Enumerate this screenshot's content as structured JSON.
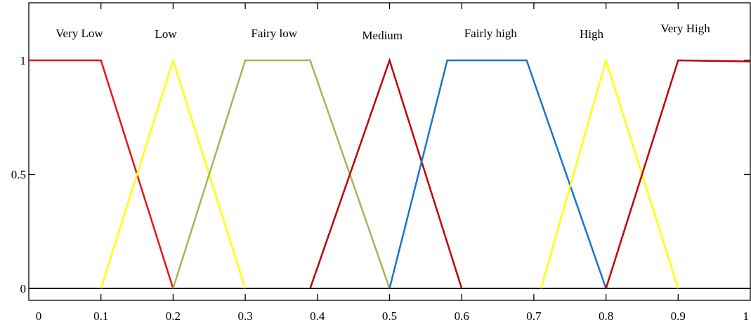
{
  "chart_data": {
    "type": "line",
    "title": "",
    "xlabel": "",
    "ylabel": "",
    "xlim": [
      0,
      1
    ],
    "ylim": [
      0,
      1
    ],
    "grid": false,
    "legend": "none",
    "xticks": [
      0,
      0.1,
      0.2,
      0.3,
      0.4,
      0.5,
      0.6,
      0.7,
      0.8,
      0.9,
      1
    ],
    "xtick_labels": [
      "0",
      "0.1",
      "0.2",
      "0.3",
      "0.4",
      "0.5",
      "0.6",
      "0.7",
      "0.8",
      "0.9",
      "1"
    ],
    "yticks": [
      0,
      0.5,
      1
    ],
    "ytick_labels": [
      "0",
      "0.5",
      "1"
    ],
    "series": [
      {
        "name": "Very Low",
        "color": "#e8131b",
        "width": 2.5,
        "x": [
          0,
          0.1,
          0.2
        ],
        "y": [
          1,
          1,
          0
        ],
        "label_x": 0.07
      },
      {
        "name": "Low",
        "color": "#ffff00",
        "width": 2.5,
        "x": [
          0.1,
          0.2,
          0.3
        ],
        "y": [
          0,
          1,
          0
        ],
        "label_x": 0.19
      },
      {
        "name": "Fairy low",
        "color": "#9bbb59",
        "width": 2.5,
        "x": [
          0.2,
          0.3,
          0.39,
          0.5
        ],
        "y": [
          0,
          1,
          1,
          0
        ],
        "label_x": 0.34
      },
      {
        "name": "Medium",
        "color": "#c0000a",
        "width": 2.5,
        "x": [
          0.39,
          0.5,
          0.6
        ],
        "y": [
          0,
          1,
          0
        ],
        "label_x": 0.49
      },
      {
        "name": "Fairly high",
        "color": "#1a75c4",
        "width": 2.5,
        "x": [
          0.5,
          0.58,
          0.69,
          0.8
        ],
        "y": [
          0,
          1,
          1,
          0
        ],
        "label_x": 0.64
      },
      {
        "name": "High",
        "color": "#ffff00",
        "width": 2.5,
        "x": [
          0.71,
          0.8,
          0.9
        ],
        "y": [
          0,
          1,
          0
        ],
        "label_x": 0.78
      },
      {
        "name": "Very High",
        "color": "#c0000a",
        "width": 2.5,
        "x": [
          0.8,
          0.9,
          1.0
        ],
        "y": [
          0,
          1,
          0.995
        ],
        "label_x": 0.91
      }
    ]
  }
}
